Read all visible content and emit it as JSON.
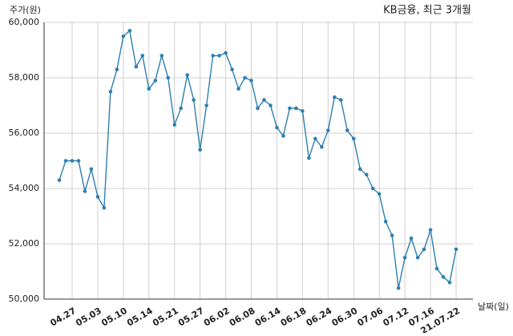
{
  "chart_data": {
    "type": "line",
    "title": "KB금융, 최근 3개월",
    "y_label": "주가(원)",
    "x_label": "날짜(일)",
    "categories": [
      null,
      null,
      "04.27",
      null,
      null,
      null,
      "05.03",
      null,
      null,
      null,
      "05.10",
      null,
      null,
      null,
      "05.14",
      null,
      null,
      null,
      "05.21",
      null,
      null,
      null,
      "05.27",
      null,
      null,
      null,
      "06.02",
      null,
      null,
      null,
      "06.08",
      null,
      null,
      null,
      "06.14",
      null,
      null,
      null,
      "06.18",
      null,
      null,
      null,
      "06.24",
      null,
      null,
      null,
      "06.30",
      null,
      null,
      null,
      "07.06",
      null,
      null,
      null,
      "07.12",
      null,
      null,
      null,
      "07.16",
      null,
      null,
      null,
      "21.07.22"
    ],
    "values": [
      54300,
      55000,
      55000,
      55000,
      53900,
      54700,
      53700,
      53300,
      57500,
      58300,
      59500,
      59700,
      58400,
      58800,
      57600,
      57900,
      58800,
      58000,
      56300,
      56900,
      58100,
      57200,
      55400,
      57000,
      58800,
      58800,
      58900,
      58300,
      57600,
      58000,
      57900,
      56900,
      57200,
      57000,
      56200,
      55900,
      56900,
      56900,
      56800,
      55100,
      55800,
      55500,
      56100,
      57300,
      57200,
      56100,
      55800,
      54700,
      54500,
      54000,
      53800,
      52800,
      52300,
      50400,
      51500,
      52200,
      51500,
      51800,
      52500,
      51100,
      50800,
      50600,
      51800
    ],
    "color": "#2e7fb0",
    "ylim": [
      50000,
      60000
    ],
    "yticks": [
      {
        "value": 50000,
        "label": "50,000"
      },
      {
        "value": 52000,
        "label": "52,000"
      },
      {
        "value": 54000,
        "label": "54,000"
      },
      {
        "value": 56000,
        "label": "56,000"
      },
      {
        "value": 58000,
        "label": "58,000"
      },
      {
        "value": 60000,
        "label": "60,000"
      }
    ],
    "grid": true
  }
}
